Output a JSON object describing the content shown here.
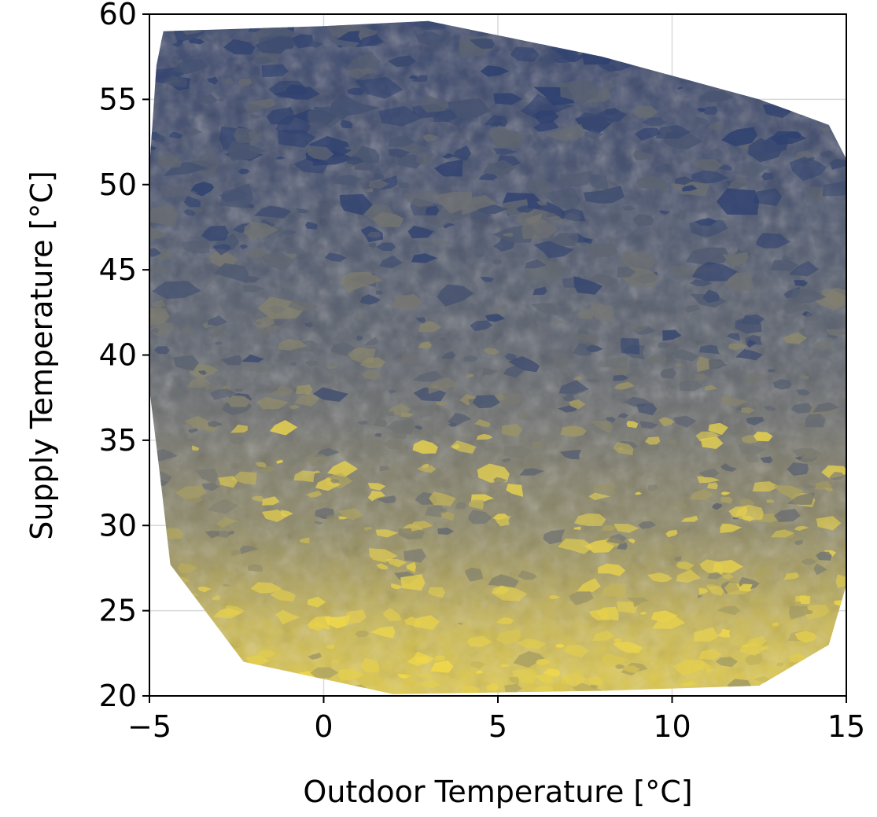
{
  "chart_data": {
    "type": "contour",
    "title": "",
    "xlabel": "Outdoor Temperature [°C]",
    "ylabel": "Supply Temperature [°C]",
    "xlim": [
      -5,
      15
    ],
    "ylim": [
      20,
      60
    ],
    "xticks": [
      -5,
      0,
      5,
      10,
      15
    ],
    "yticks": [
      20,
      25,
      30,
      35,
      40,
      45,
      50,
      55,
      60
    ],
    "xtick_labels": [
      "−5",
      "0",
      "5",
      "10",
      "15"
    ],
    "ytick_labels": [
      "20",
      "25",
      "30",
      "35",
      "40",
      "45",
      "50",
      "55",
      "60"
    ],
    "grid": true,
    "colormap": "cividis",
    "colors": {
      "low": "#2f4170",
      "mid": "#7a7a72",
      "high": "#f0d84a"
    },
    "data_boundary": [
      [
        -4.6,
        59.0
      ],
      [
        0.0,
        59.3
      ],
      [
        3.0,
        59.6
      ],
      [
        8.0,
        57.5
      ],
      [
        12.5,
        55.0
      ],
      [
        14.5,
        53.5
      ],
      [
        15.0,
        51.5
      ],
      [
        15.0,
        26.5
      ],
      [
        14.5,
        23.0
      ],
      [
        12.5,
        20.6
      ],
      [
        8.0,
        20.3
      ],
      [
        2.0,
        20.1
      ],
      [
        -2.3,
        22.0
      ],
      [
        -4.4,
        27.7
      ],
      [
        -4.7,
        33.0
      ],
      [
        -5.0,
        38.0
      ],
      [
        -5.0,
        51.0
      ],
      [
        -4.8,
        57.0
      ]
    ],
    "field_profile": [
      {
        "y": 21,
        "level": 0.92
      },
      {
        "y": 24,
        "level": 0.85
      },
      {
        "y": 27,
        "level": 0.72
      },
      {
        "y": 30,
        "level": 0.6
      },
      {
        "y": 33,
        "level": 0.55
      },
      {
        "y": 36,
        "level": 0.45
      },
      {
        "y": 40,
        "level": 0.33
      },
      {
        "y": 45,
        "level": 0.25
      },
      {
        "y": 50,
        "level": 0.16
      },
      {
        "y": 55,
        "level": 0.1
      },
      {
        "y": 59,
        "level": 0.06
      }
    ]
  }
}
